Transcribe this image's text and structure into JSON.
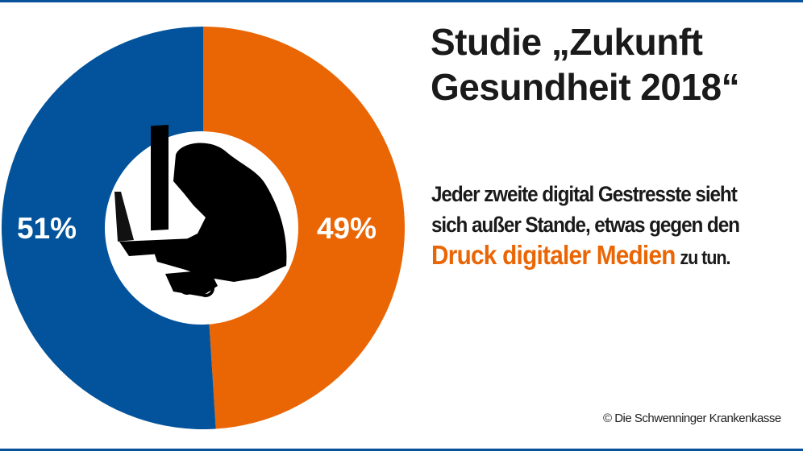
{
  "title_lines": [
    "Studie „Zukunft",
    "Gesundheit 2018“"
  ],
  "body": {
    "line1": "Jeder zweite digital Gestresste sieht",
    "line2": "sich außer Stande, etwas gegen den",
    "highlight": "Druck digitaler Medien",
    "tail": "zu tun."
  },
  "copyright": "© Die Schwenninger Krankenkasse",
  "colors": {
    "blue": "#02539b",
    "orange": "#ea6605",
    "frame": "#0a539c"
  },
  "center_icon": "stressed-person-at-computer-silhouette",
  "chart_data": {
    "type": "pie",
    "donut": true,
    "series": [
      {
        "label": "51%",
        "value": 51,
        "color": "#02539b"
      },
      {
        "label": "49%",
        "value": 49,
        "color": "#ea6605"
      }
    ]
  }
}
